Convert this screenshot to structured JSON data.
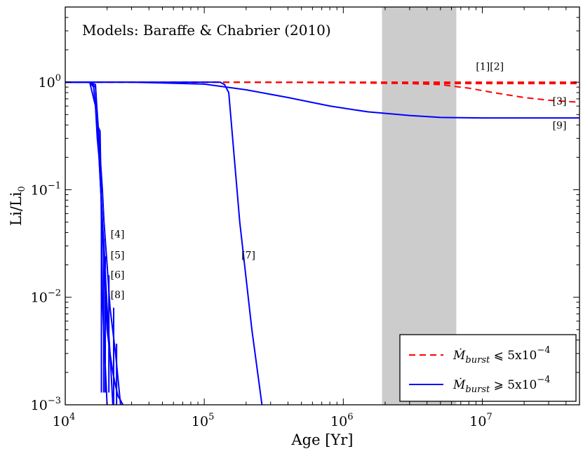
{
  "chart_data": {
    "type": "line",
    "title": "Models: Baraffe & Chabrier (2010)",
    "xlabel": "Age [Yr]",
    "ylabel": "Li/Li",
    "ylabel_sub": "0",
    "xscale": "log",
    "yscale": "log",
    "xlim": [
      10000,
      50000000
    ],
    "ylim": [
      0.001,
      5
    ],
    "x_ticks": [
      {
        "value": 10000,
        "base": "10",
        "exp": "4"
      },
      {
        "value": 100000,
        "base": "10",
        "exp": "5"
      },
      {
        "value": 1000000,
        "base": "10",
        "exp": "6"
      },
      {
        "value": 10000000,
        "base": "10",
        "exp": "7"
      }
    ],
    "y_ticks": [
      {
        "value": 0.001,
        "base": "10",
        "exp": "−3"
      },
      {
        "value": 0.01,
        "base": "10",
        "exp": "−2"
      },
      {
        "value": 0.1,
        "base": "10",
        "exp": "−1"
      },
      {
        "value": 1,
        "base": "10",
        "exp": "0"
      }
    ],
    "shaded_region": {
      "x": [
        1900000,
        6500000
      ],
      "color": "#cccccc"
    },
    "legend": [
      {
        "label": "Ṁ",
        "sub": "burst",
        "rel": " ⩽ 5x10",
        "exp": "−4",
        "style": "dashed",
        "color": "#ff0000"
      },
      {
        "label": "Ṁ",
        "sub": "burst",
        "rel": " ⩾ 5x10",
        "exp": "−4",
        "style": "solid",
        "color": "#0000ff"
      }
    ],
    "legend_position": "lower-right",
    "series": [
      {
        "name": "[1]",
        "style": "dashed",
        "color": "#ff0000",
        "x": [
          10000,
          50000,
          130000,
          1000000,
          50000000
        ],
        "y": [
          1,
          1,
          1,
          1,
          1
        ]
      },
      {
        "name": "[2]",
        "style": "dashed",
        "color": "#ff0000",
        "x": [
          10000,
          130000,
          1000000,
          3000000,
          6000000,
          50000000
        ],
        "y": [
          1,
          1,
          0.99,
          0.98,
          0.97,
          0.97
        ]
      },
      {
        "name": "[3]",
        "style": "dashed",
        "color": "#ff0000",
        "x": [
          10000,
          130000,
          1000000,
          3000000,
          5000000,
          8000000,
          12000000,
          20000000,
          30000000,
          50000000
        ],
        "y": [
          1,
          1,
          0.99,
          0.97,
          0.95,
          0.88,
          0.8,
          0.72,
          0.68,
          0.65
        ]
      },
      {
        "name": "[9]",
        "style": "solid",
        "color": "#0000ff",
        "x": [
          10000,
          30000,
          100000,
          200000,
          400000,
          800000,
          1500000,
          3000000,
          5000000,
          10000000,
          50000000
        ],
        "y": [
          1,
          1,
          0.96,
          0.85,
          0.72,
          0.6,
          0.53,
          0.49,
          0.47,
          0.465,
          0.465
        ]
      },
      {
        "name": "[7]",
        "style": "solid",
        "color": "#0000ff",
        "x": [
          10000,
          80000,
          130000,
          140000,
          150000,
          180000,
          220000,
          260000
        ],
        "y": [
          1,
          1,
          1,
          0.95,
          0.8,
          0.05,
          0.005,
          0.001
        ]
      },
      {
        "name": "[4]",
        "style": "solid",
        "color": "#0000ff",
        "x": [
          10000,
          15000,
          16500,
          17500,
          18500,
          19000,
          20000,
          21000,
          23000,
          25000
        ],
        "y": [
          1,
          1,
          0.9,
          0.3,
          0.1,
          0.05,
          0.02,
          0.008,
          0.003,
          0.001
        ]
      },
      {
        "name": "[5]",
        "style": "solid",
        "color": "#0000ff",
        "x": [
          10000,
          15000,
          16500,
          17000,
          17500,
          18000,
          18500,
          19000,
          19500,
          20000,
          21000,
          22000
        ],
        "y": [
          1,
          1,
          0.6,
          0.3,
          0.2,
          0.1,
          0.05,
          0.03,
          0.015,
          0.008,
          0.003,
          0.001
        ]
      },
      {
        "name": "[6]",
        "style": "solid",
        "color": "#0000ff",
        "x": [
          10000,
          15000,
          16000,
          17000,
          17800,
          18000,
          18200,
          18500,
          19000,
          19500,
          20000
        ],
        "y": [
          1,
          1,
          0.9,
          0.4,
          0.35,
          0.15,
          0.05,
          0.01,
          0.004,
          0.002,
          0.001
        ]
      },
      {
        "name": "[8]",
        "style": "solid",
        "color": "#0000ff",
        "x": [
          10000,
          15000,
          16500,
          18000,
          18500,
          19000,
          19500,
          20000,
          21000,
          22000,
          23000,
          24000,
          25000,
          26000
        ],
        "y": [
          1,
          1,
          0.95,
          0.1,
          0.05,
          0.02,
          0.01,
          0.005,
          0.003,
          0.002,
          0.0015,
          0.0012,
          0.0011,
          0.001
        ]
      }
    ],
    "spikes": [
      {
        "x": 18200,
        "top": 0.052,
        "bottom": 0.0013
      },
      {
        "x": 18900,
        "top": 0.035,
        "bottom": 0.0013
      },
      {
        "x": 19400,
        "top": 0.024,
        "bottom": 0.0013
      },
      {
        "x": 20600,
        "top": 0.016,
        "bottom": 0.0013
      },
      {
        "x": 22300,
        "top": 0.008,
        "bottom": 0.001
      },
      {
        "x": 23400,
        "top": 0.0037,
        "bottom": 0.001
      }
    ],
    "annotations": [
      {
        "text": "[1][2]",
        "x": 9000000,
        "y": 1.3
      },
      {
        "text": "[3]",
        "x": 32000000,
        "y": 0.62
      },
      {
        "text": "[9]",
        "x": 32000000,
        "y": 0.37
      },
      {
        "text": "[4]",
        "x": 21200,
        "y": 0.036
      },
      {
        "text": "[5]",
        "x": 21200,
        "y": 0.023
      },
      {
        "text": "[6]",
        "x": 21200,
        "y": 0.015
      },
      {
        "text": "[8]",
        "x": 21200,
        "y": 0.0098
      },
      {
        "text": "[7]",
        "x": 185000,
        "y": 0.023
      }
    ]
  }
}
